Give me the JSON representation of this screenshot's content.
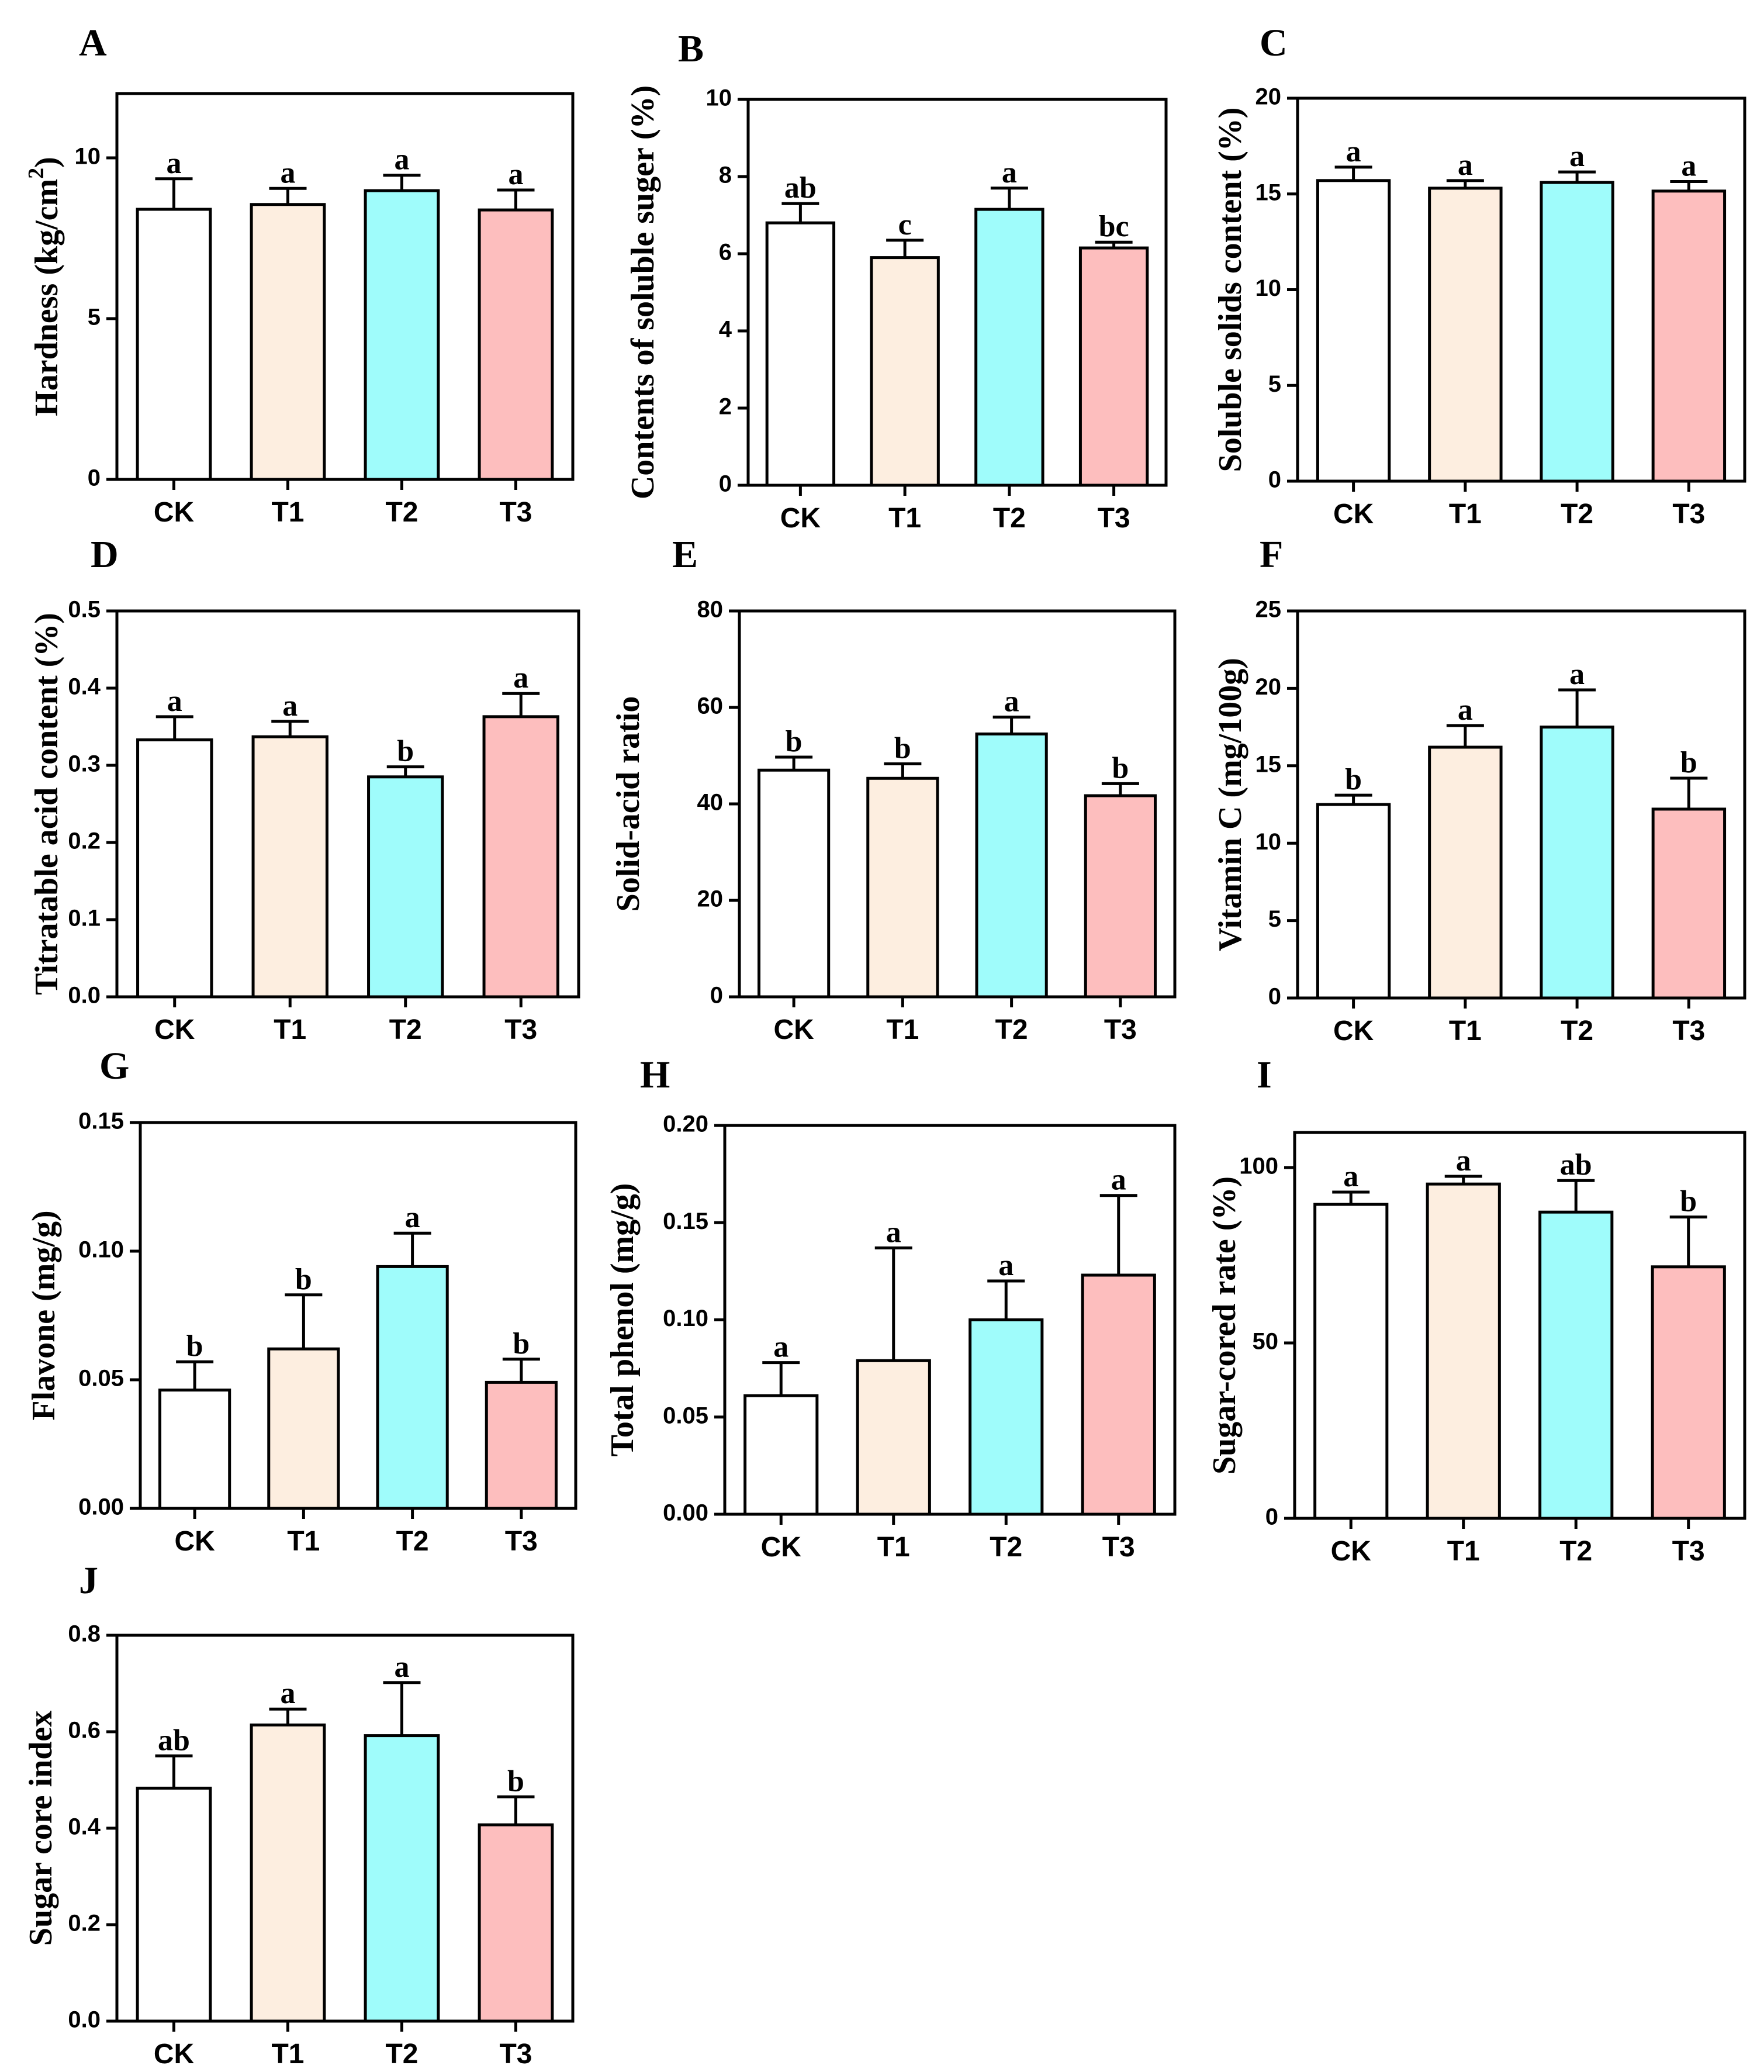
{
  "figure": {
    "colors": {
      "CK": "#ffffff",
      "T1": "#fdeee0",
      "T2": "#9ffcfb",
      "T3": "#fdbebe"
    }
  },
  "chart_data": [
    {
      "panel": "A",
      "type": "bar",
      "ylabel": "Hardness (kg/cm²)",
      "ylabel_parts": [
        "Hardness (kg/cm",
        "2",
        ")"
      ],
      "categories": [
        "CK",
        "T1",
        "T2",
        "T3"
      ],
      "values": [
        8.4,
        8.55,
        8.98,
        8.38
      ],
      "errors": [
        0.95,
        0.5,
        0.48,
        0.62
      ],
      "letters": [
        "a",
        "a",
        "a",
        "a"
      ],
      "ylim": [
        0,
        12
      ],
      "yticks": [
        0,
        5,
        10
      ],
      "ytick_labels": [
        "0",
        "5",
        "10"
      ]
    },
    {
      "panel": "B",
      "type": "bar",
      "ylabel": "Contents of soluble suger (%)",
      "categories": [
        "CK",
        "T1",
        "T2",
        "T3"
      ],
      "values": [
        6.8,
        5.9,
        7.15,
        6.15
      ],
      "errors": [
        0.5,
        0.45,
        0.55,
        0.15
      ],
      "letters": [
        "ab",
        "c",
        "a",
        "bc"
      ],
      "ylim": [
        0,
        10
      ],
      "yticks": [
        0,
        2,
        4,
        6,
        8,
        10
      ],
      "ytick_labels": [
        "0",
        "2",
        "4",
        "6",
        "8",
        "10"
      ]
    },
    {
      "panel": "C",
      "type": "bar",
      "ylabel": "Soluble solids content (%)",
      "categories": [
        "CK",
        "T1",
        "T2",
        "T3"
      ],
      "values": [
        15.7,
        15.3,
        15.6,
        15.15
      ],
      "errors": [
        0.7,
        0.4,
        0.55,
        0.5
      ],
      "letters": [
        "a",
        "a",
        "a",
        "a"
      ],
      "ylim": [
        0,
        20
      ],
      "yticks": [
        0,
        5,
        10,
        15,
        20
      ],
      "ytick_labels": [
        "0",
        "5",
        "10",
        "15",
        "20"
      ]
    },
    {
      "panel": "D",
      "type": "bar",
      "ylabel": "Titratable acid content (%)",
      "categories": [
        "CK",
        "T1",
        "T2",
        "T3"
      ],
      "values": [
        0.333,
        0.337,
        0.285,
        0.363
      ],
      "errors": [
        0.03,
        0.02,
        0.013,
        0.03
      ],
      "letters": [
        "a",
        "a",
        "b",
        "a"
      ],
      "ylim": [
        0,
        0.5
      ],
      "yticks": [
        0,
        0.1,
        0.2,
        0.3,
        0.4,
        0.5
      ],
      "ytick_labels": [
        "0.0",
        "0.1",
        "0.2",
        "0.3",
        "0.4",
        "0.5"
      ]
    },
    {
      "panel": "E",
      "type": "bar",
      "ylabel": "Solid-acid ratio",
      "categories": [
        "CK",
        "T1",
        "T2",
        "T3"
      ],
      "values": [
        47,
        45.3,
        54.5,
        41.7
      ],
      "errors": [
        2.7,
        3.0,
        3.5,
        2.5
      ],
      "letters": [
        "b",
        "b",
        "a",
        "b"
      ],
      "ylim": [
        0,
        80
      ],
      "yticks": [
        0,
        20,
        40,
        60,
        80
      ],
      "ytick_labels": [
        "0",
        "20",
        "40",
        "60",
        "80"
      ]
    },
    {
      "panel": "F",
      "type": "bar",
      "ylabel": "Vitamin C (mg/100g)",
      "categories": [
        "CK",
        "T1",
        "T2",
        "T3"
      ],
      "values": [
        12.5,
        16.2,
        17.5,
        12.2
      ],
      "errors": [
        0.6,
        1.4,
        2.4,
        2.0
      ],
      "letters": [
        "b",
        "a",
        "a",
        "b"
      ],
      "ylim": [
        0,
        25
      ],
      "yticks": [
        0,
        5,
        10,
        15,
        20,
        25
      ],
      "ytick_labels": [
        "0",
        "5",
        "10",
        "15",
        "20",
        "25"
      ]
    },
    {
      "panel": "G",
      "type": "bar",
      "ylabel": "Flavone (mg/g)",
      "categories": [
        "CK",
        "T1",
        "T2",
        "T3"
      ],
      "values": [
        0.046,
        0.062,
        0.094,
        0.049
      ],
      "errors": [
        0.011,
        0.021,
        0.013,
        0.009
      ],
      "letters": [
        "b",
        "b",
        "a",
        "b"
      ],
      "ylim": [
        0,
        0.15
      ],
      "yticks": [
        0,
        0.05,
        0.1,
        0.15
      ],
      "ytick_labels": [
        "0.00",
        "0.05",
        "0.10",
        "0.15"
      ]
    },
    {
      "panel": "H",
      "type": "bar",
      "ylabel": "Total phenol (mg/g)",
      "categories": [
        "CK",
        "T1",
        "T2",
        "T3"
      ],
      "values": [
        0.061,
        0.079,
        0.1,
        0.123
      ],
      "errors": [
        0.017,
        0.058,
        0.02,
        0.041
      ],
      "letters": [
        "a",
        "a",
        "a",
        "a"
      ],
      "ylim": [
        0,
        0.2
      ],
      "yticks": [
        0,
        0.05,
        0.1,
        0.15,
        0.2
      ],
      "ytick_labels": [
        "0.00",
        "0.05",
        "0.10",
        "0.15",
        "0.20"
      ]
    },
    {
      "panel": "I",
      "type": "bar",
      "ylabel": "Sugar-cored  rate (%)",
      "categories": [
        "CK",
        "T1",
        "T2",
        "T3"
      ],
      "values": [
        89.5,
        95.3,
        87.3,
        71.7
      ],
      "errors": [
        3.5,
        2.2,
        9.0,
        14.2
      ],
      "letters": [
        "a",
        "a",
        "ab",
        "b"
      ],
      "ylim": [
        0,
        110
      ],
      "yticks": [
        0,
        50,
        100
      ],
      "ytick_labels": [
        "0",
        "50",
        "100"
      ]
    },
    {
      "panel": "J",
      "type": "bar",
      "ylabel": "Sugar core index",
      "categories": [
        "CK",
        "T1",
        "T2",
        "T3"
      ],
      "values": [
        0.483,
        0.614,
        0.592,
        0.407
      ],
      "errors": [
        0.067,
        0.033,
        0.11,
        0.058
      ],
      "letters": [
        "ab",
        "a",
        "a",
        "b"
      ],
      "ylim": [
        0,
        0.8
      ],
      "yticks": [
        0,
        0.2,
        0.4,
        0.6,
        0.8
      ],
      "ytick_labels": [
        "0.0",
        "0.2",
        "0.4",
        "0.6",
        "0.8"
      ]
    }
  ]
}
